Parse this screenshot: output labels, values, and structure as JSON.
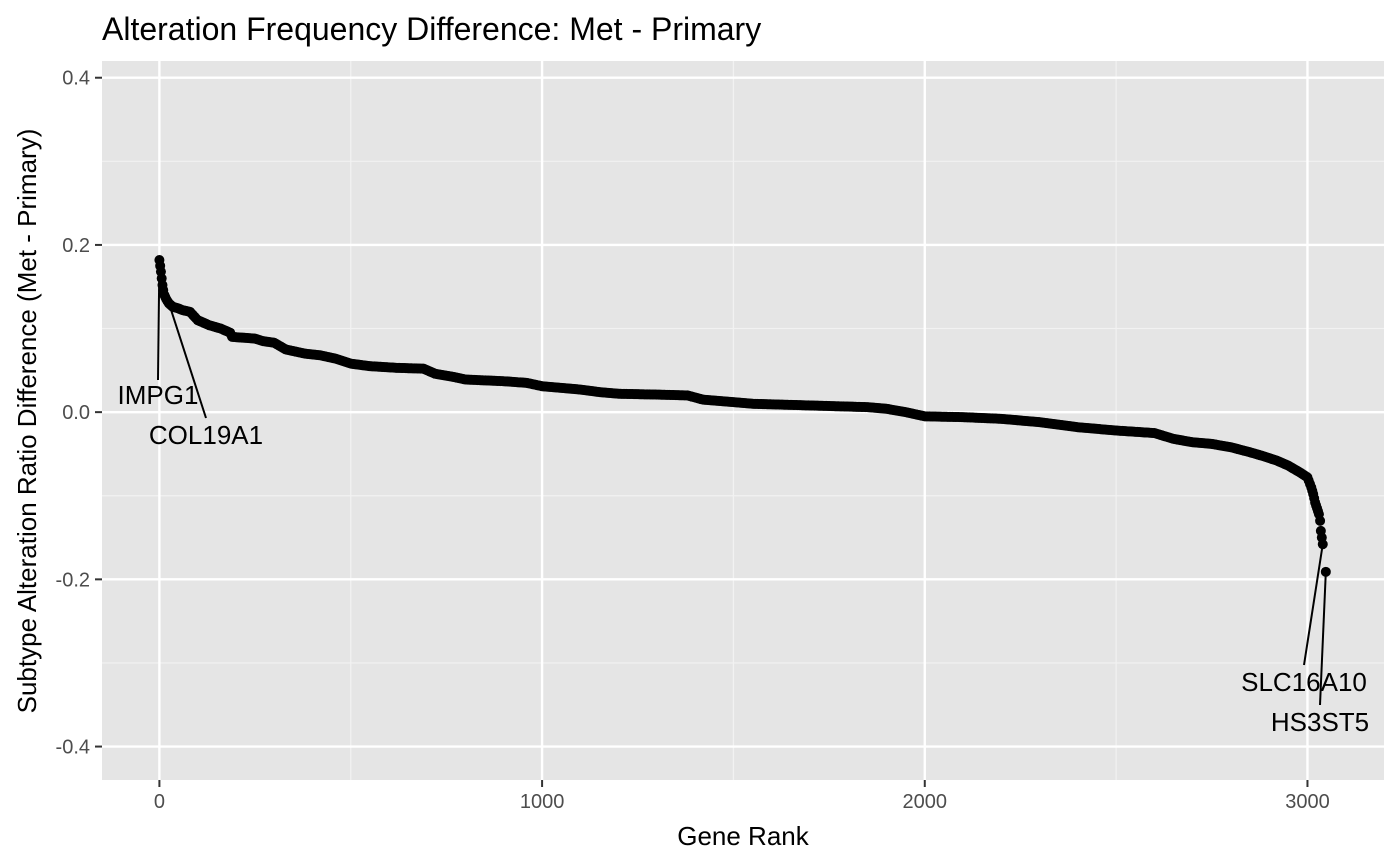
{
  "chart_data": {
    "type": "scatter",
    "title": "Alteration Frequency Difference: Met - Primary",
    "xlabel": "Gene Rank",
    "ylabel": "Subtype Alteration Ratio Difference (Met - Primary)",
    "xlim": [
      -150,
      3200
    ],
    "ylim": [
      -0.44,
      0.42
    ],
    "x_ticks": [
      0,
      1000,
      2000,
      3000
    ],
    "x_tick_labels": [
      "0",
      "1000",
      "2000",
      "3000"
    ],
    "y_ticks": [
      -0.4,
      -0.2,
      0.0,
      0.2,
      0.4
    ],
    "y_tick_labels": [
      "-0.4",
      "-0.2",
      "0.0",
      "0.2",
      "0.4"
    ],
    "grid": true,
    "legend": "none",
    "point_color": "#000000",
    "panel_color": "#e5e5e5",
    "curve": [
      [
        0,
        0.182
      ],
      [
        2,
        0.175
      ],
      [
        4,
        0.168
      ],
      [
        6,
        0.16
      ],
      [
        8,
        0.152
      ],
      [
        10,
        0.146
      ],
      [
        13,
        0.14
      ],
      [
        18,
        0.135
      ],
      [
        25,
        0.13
      ],
      [
        35,
        0.126
      ],
      [
        50,
        0.124
      ],
      [
        60,
        0.122
      ],
      [
        80,
        0.12
      ],
      [
        100,
        0.11
      ],
      [
        130,
        0.104
      ],
      [
        160,
        0.1
      ],
      [
        185,
        0.095
      ],
      [
        190,
        0.09
      ],
      [
        250,
        0.088
      ],
      [
        270,
        0.085
      ],
      [
        300,
        0.083
      ],
      [
        330,
        0.075
      ],
      [
        380,
        0.07
      ],
      [
        420,
        0.068
      ],
      [
        460,
        0.064
      ],
      [
        500,
        0.058
      ],
      [
        550,
        0.055
      ],
      [
        620,
        0.053
      ],
      [
        690,
        0.052
      ],
      [
        720,
        0.046
      ],
      [
        770,
        0.042
      ],
      [
        800,
        0.039
      ],
      [
        900,
        0.037
      ],
      [
        960,
        0.035
      ],
      [
        1000,
        0.031
      ],
      [
        1050,
        0.029
      ],
      [
        1100,
        0.027
      ],
      [
        1150,
        0.024
      ],
      [
        1200,
        0.022
      ],
      [
        1300,
        0.021
      ],
      [
        1380,
        0.02
      ],
      [
        1420,
        0.015
      ],
      [
        1500,
        0.012
      ],
      [
        1550,
        0.01
      ],
      [
        1700,
        0.008
      ],
      [
        1850,
        0.006
      ],
      [
        1900,
        0.004
      ],
      [
        1950,
        0.0
      ],
      [
        2000,
        -0.005
      ],
      [
        2100,
        -0.006
      ],
      [
        2200,
        -0.008
      ],
      [
        2300,
        -0.012
      ],
      [
        2400,
        -0.018
      ],
      [
        2500,
        -0.022
      ],
      [
        2600,
        -0.025
      ],
      [
        2650,
        -0.032
      ],
      [
        2700,
        -0.036
      ],
      [
        2750,
        -0.038
      ],
      [
        2800,
        -0.042
      ],
      [
        2850,
        -0.048
      ],
      [
        2880,
        -0.052
      ],
      [
        2920,
        -0.058
      ],
      [
        2950,
        -0.064
      ],
      [
        2980,
        -0.072
      ],
      [
        3000,
        -0.078
      ],
      [
        3010,
        -0.09
      ],
      [
        3015,
        -0.098
      ],
      [
        3020,
        -0.108
      ],
      [
        3025,
        -0.115
      ],
      [
        3030,
        -0.122
      ],
      [
        3033,
        -0.13
      ],
      [
        3035,
        -0.142
      ],
      [
        3040,
        -0.158
      ]
    ],
    "extra_points": [
      {
        "x": 3048,
        "y": -0.191
      }
    ],
    "annotations": [
      {
        "label": "IMPG1",
        "point": [
          0,
          0.182
        ]
      },
      {
        "label": "COL19A1",
        "point": [
          25,
          0.13
        ]
      },
      {
        "label": "SLC16A10",
        "point": [
          3040,
          -0.158
        ]
      },
      {
        "label": "HS3ST5",
        "point": [
          3048,
          -0.191
        ]
      }
    ]
  }
}
